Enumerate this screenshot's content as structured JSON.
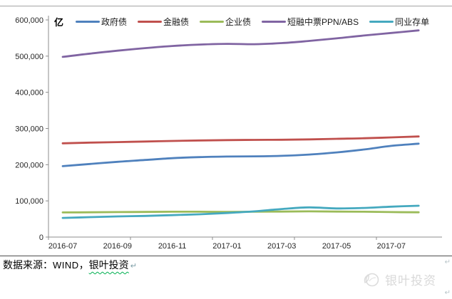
{
  "page": {
    "background": "#ffffff"
  },
  "chart": {
    "unit_label": "亿",
    "axis_color": "#8c8c8c",
    "tick_text_color": "#262626",
    "y_tick_labels": [
      "600,000",
      "500,000",
      "400,000",
      "300,000",
      "200,000",
      "100,000",
      "0"
    ],
    "x_tick_labels": [
      "2016-07",
      "2016-09",
      "2016-11",
      "2017-01",
      "2017-03",
      "2017-05",
      "2017-07"
    ]
  },
  "chart_data": {
    "type": "line",
    "title": "",
    "ylabel": "亿",
    "xlabel": "",
    "ylim": [
      0,
      600000
    ],
    "y_tick_step": 100000,
    "grid": false,
    "legend_position": "top",
    "line_style": "smooth, no markers",
    "x": [
      "2016-07",
      "2016-08",
      "2016-09",
      "2016-10",
      "2016-11",
      "2016-12",
      "2017-01",
      "2017-02",
      "2017-03",
      "2017-04",
      "2017-05",
      "2017-06",
      "2017-07",
      "2017-08"
    ],
    "x_tick_labels": [
      "2016-07",
      "2016-09",
      "2016-11",
      "2017-01",
      "2017-03",
      "2017-05",
      "2017-07"
    ],
    "series": [
      {
        "name": "政府债",
        "color": "#4F81BD",
        "values": [
          196000,
          202000,
          208000,
          213000,
          218000,
          221000,
          222500,
          223000,
          224500,
          228000,
          234000,
          242000,
          252000,
          258000
        ]
      },
      {
        "name": "金融债",
        "color": "#C0504D",
        "values": [
          259000,
          261000,
          262500,
          264000,
          265500,
          267000,
          268000,
          268500,
          269000,
          270000,
          271500,
          273000,
          275500,
          278000
        ]
      },
      {
        "name": "企业债",
        "color": "#9BBB59",
        "values": [
          68000,
          68500,
          69000,
          69500,
          70000,
          70000,
          69500,
          70000,
          70500,
          71000,
          70500,
          70000,
          69000,
          68500
        ]
      },
      {
        "name": "短融中票PPN/ABS",
        "color": "#8064A2",
        "values": [
          498000,
          507000,
          515000,
          522000,
          528000,
          532000,
          534000,
          533000,
          536000,
          542000,
          549000,
          557000,
          564000,
          571000
        ]
      },
      {
        "name": "同业存单",
        "color": "#45A9BF",
        "values": [
          53000,
          55000,
          57000,
          58500,
          60500,
          63000,
          66500,
          71000,
          77500,
          82000,
          79000,
          80500,
          84000,
          86500
        ]
      }
    ]
  },
  "footer": {
    "source_prefix": "数据来源：",
    "source_wind": "WIND",
    "source_separator": "，",
    "source_org": "银叶投资",
    "paragraph_mark": "↵",
    "watermark_text": "银叶投资"
  }
}
